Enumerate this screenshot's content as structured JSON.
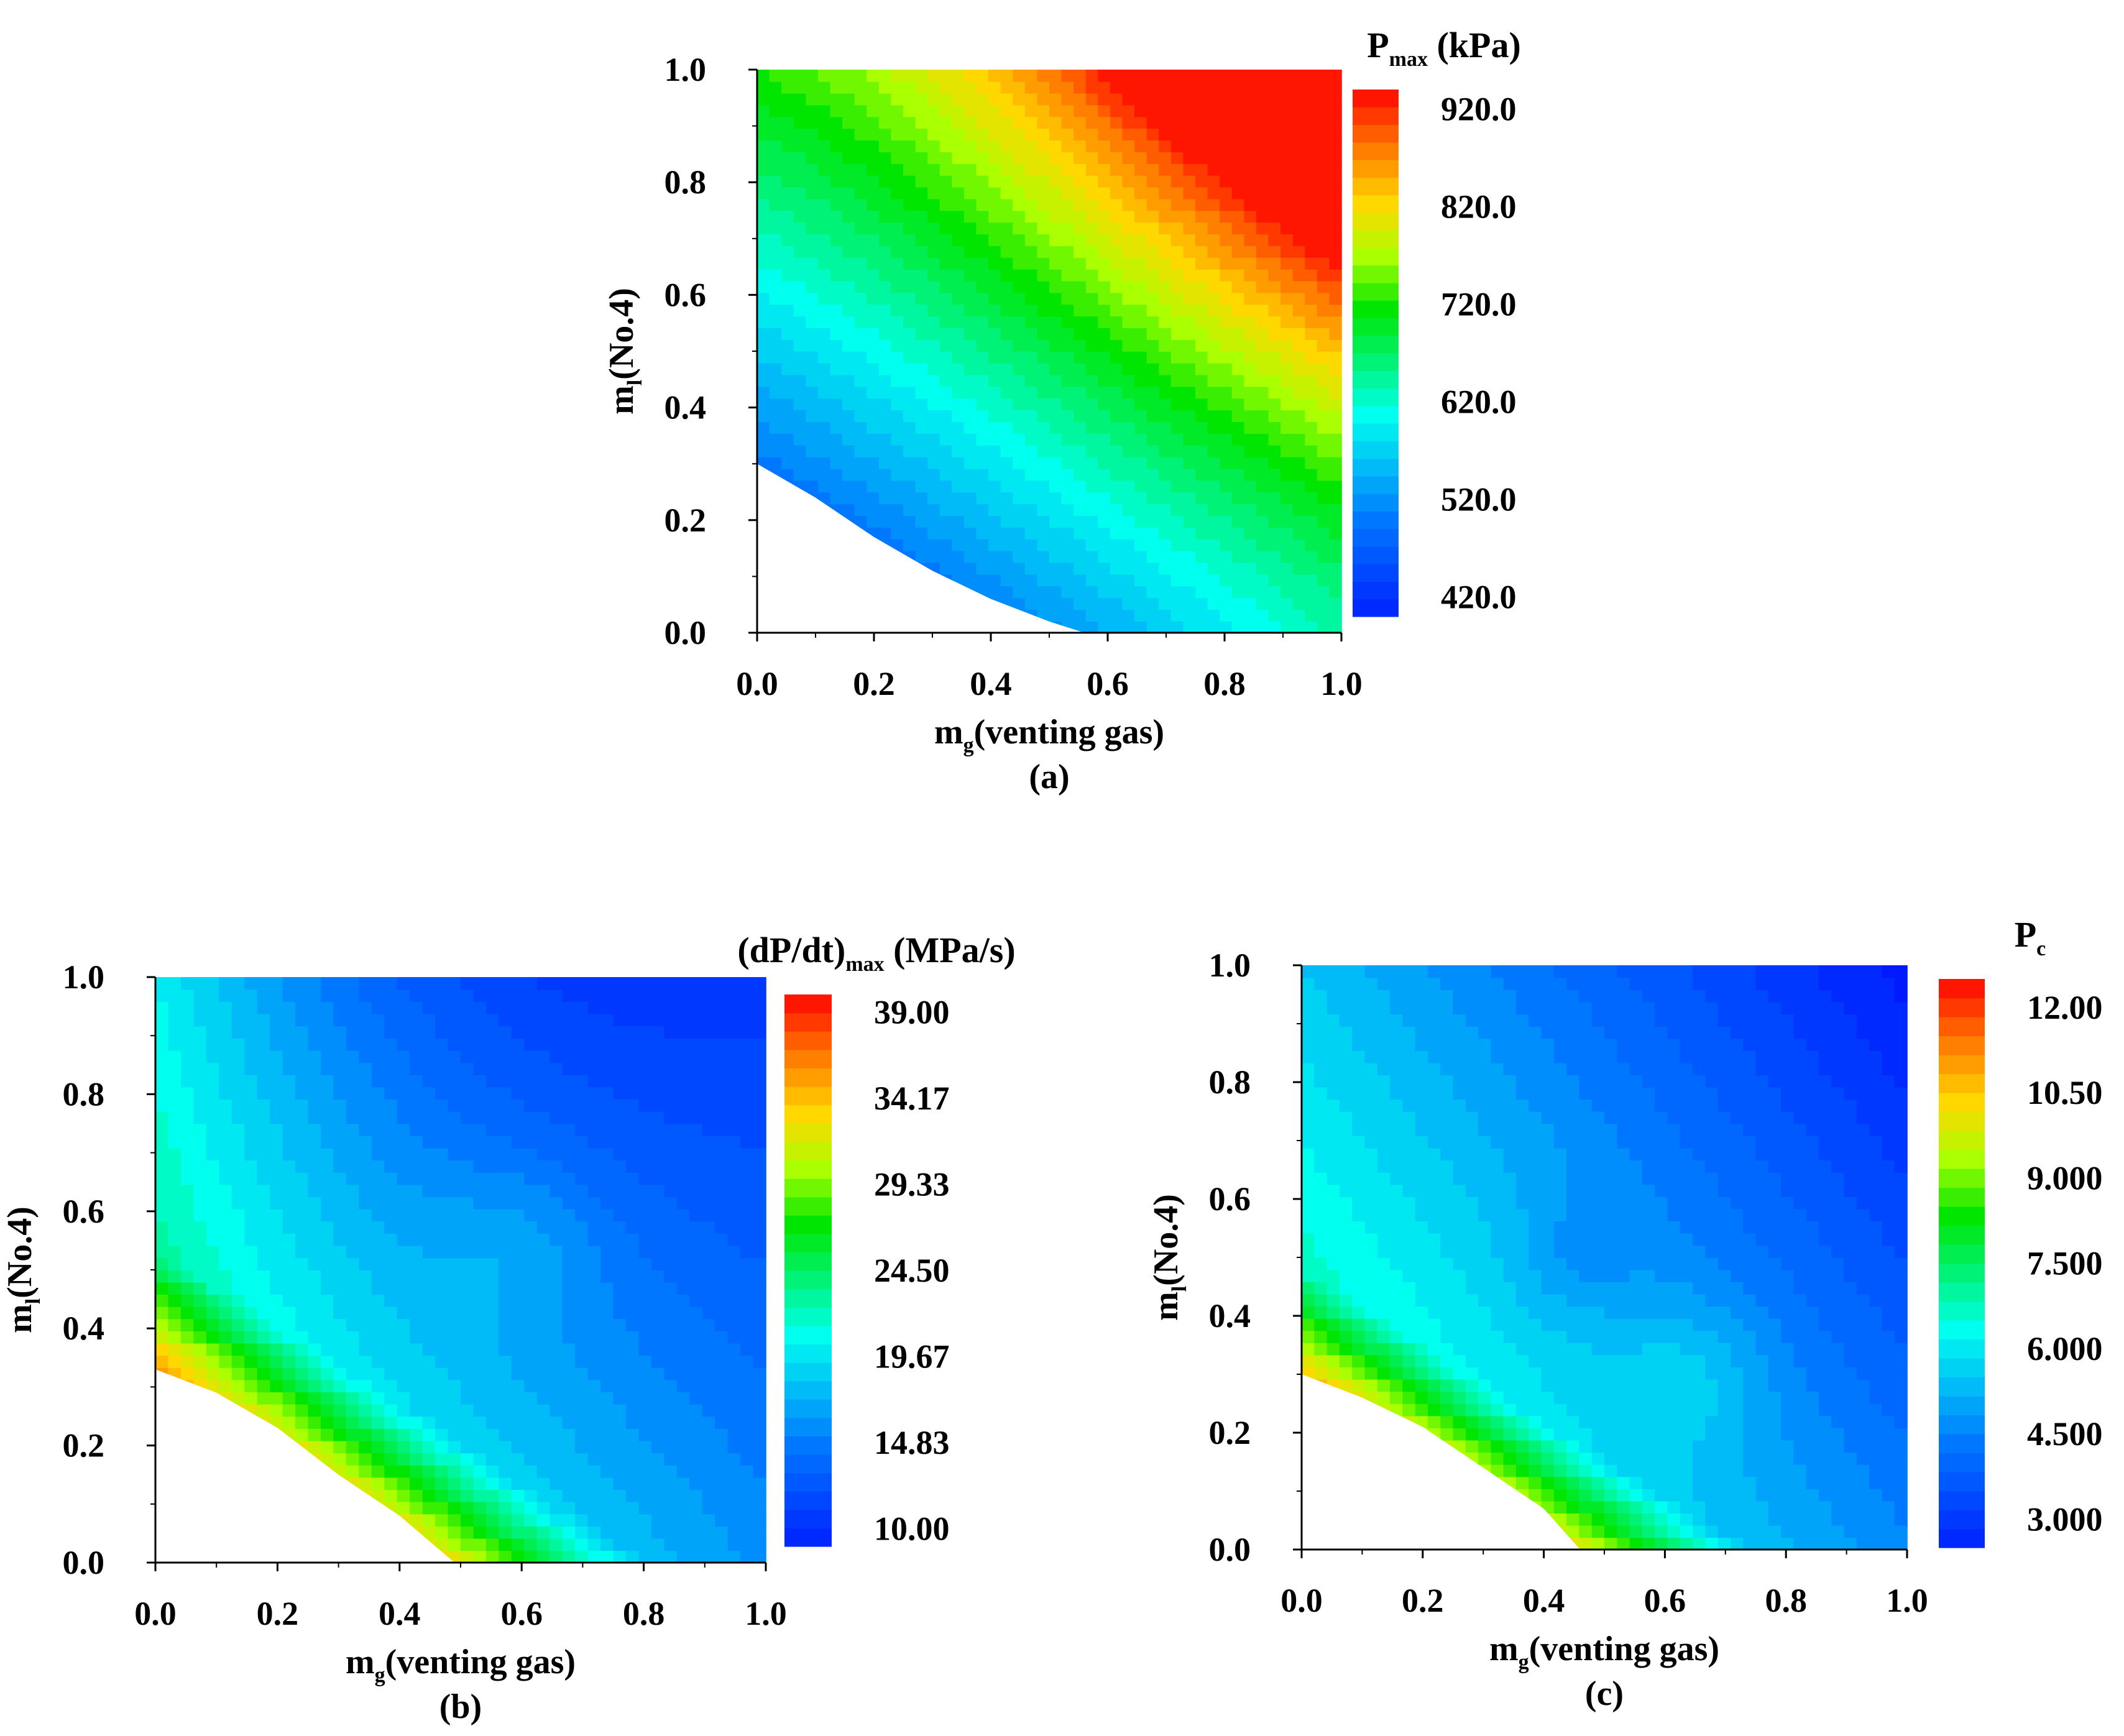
{
  "chart_data": [
    {
      "type": "heatmap",
      "id": "a",
      "panel_label": "(a)",
      "xlabel_main": "m",
      "xlabel_sub": "g",
      "xlabel_rest": "(venting gas)",
      "ylabel_main": "m",
      "ylabel_sub": "l",
      "ylabel_rest": "(No.4)",
      "colorbar_title_main": "P",
      "colorbar_title_sub": "max",
      "colorbar_title_rest": " (kPa)",
      "xlim": [
        0.0,
        1.0
      ],
      "ylim": [
        0.0,
        1.0
      ],
      "x_ticks": [
        "0.0",
        "0.2",
        "0.4",
        "0.6",
        "0.8",
        "1.0"
      ],
      "y_ticks": [
        "0.0",
        "0.2",
        "0.4",
        "0.6",
        "0.8",
        "1.0"
      ],
      "colorbar_range": [
        400.0,
        940.0
      ],
      "colorbar_ticks": [
        {
          "value": 420.0,
          "label": "420.0"
        },
        {
          "value": 520.0,
          "label": "520.0"
        },
        {
          "value": 620.0,
          "label": "620.0"
        },
        {
          "value": 720.0,
          "label": "720.0"
        },
        {
          "value": 820.0,
          "label": "820.0"
        },
        {
          "value": 920.0,
          "label": "920.0"
        }
      ],
      "blank_region_boundary": {
        "x": [
          0.0,
          0.1,
          0.2,
          0.3,
          0.4,
          0.5,
          0.56
        ],
        "y": [
          0.3,
          0.24,
          0.17,
          0.11,
          0.06,
          0.02,
          0.0
        ]
      }
    },
    {
      "type": "heatmap",
      "id": "b",
      "panel_label": "(b)",
      "xlabel_main": "m",
      "xlabel_sub": "g",
      "xlabel_rest": "(venting gas)",
      "ylabel_main": "m",
      "ylabel_sub": "l",
      "ylabel_rest": "(No.4)",
      "colorbar_title_main": "(dP/dt)",
      "colorbar_title_sub": "max",
      "colorbar_title_rest": " (MPa/s)",
      "xlim": [
        0.0,
        1.0
      ],
      "ylim": [
        0.0,
        1.0
      ],
      "x_ticks": [
        "0.0",
        "0.2",
        "0.4",
        "0.6",
        "0.8",
        "1.0"
      ],
      "y_ticks": [
        "0.0",
        "0.2",
        "0.4",
        "0.6",
        "0.8",
        "1.0"
      ],
      "colorbar_range": [
        9.0,
        40.0
      ],
      "colorbar_ticks": [
        {
          "value": 10.0,
          "label": "10.00"
        },
        {
          "value": 14.83,
          "label": "14.83"
        },
        {
          "value": 19.67,
          "label": "19.67"
        },
        {
          "value": 24.5,
          "label": "24.50"
        },
        {
          "value": 29.33,
          "label": "29.33"
        },
        {
          "value": 34.17,
          "label": "34.17"
        },
        {
          "value": 39.0,
          "label": "39.00"
        }
      ],
      "blank_region_boundary": {
        "x": [
          0.0,
          0.1,
          0.2,
          0.3,
          0.4,
          0.49
        ],
        "y": [
          0.33,
          0.29,
          0.23,
          0.15,
          0.08,
          0.0
        ]
      }
    },
    {
      "type": "heatmap",
      "id": "c",
      "panel_label": "(c)",
      "xlabel_main": "m",
      "xlabel_sub": "g",
      "xlabel_rest": "(venting gas)",
      "ylabel_main": "m",
      "ylabel_sub": "l",
      "ylabel_rest": "(No.4)",
      "colorbar_title_main": "P",
      "colorbar_title_sub": "c",
      "colorbar_title_rest": "",
      "xlim": [
        0.0,
        1.0
      ],
      "ylim": [
        0.0,
        1.0
      ],
      "x_ticks": [
        "0.0",
        "0.2",
        "0.4",
        "0.6",
        "0.8",
        "1.0"
      ],
      "y_ticks": [
        "0.0",
        "0.2",
        "0.4",
        "0.6",
        "0.8",
        "1.0"
      ],
      "colorbar_range": [
        2.5,
        12.5
      ],
      "colorbar_ticks": [
        {
          "value": 3.0,
          "label": "3.000"
        },
        {
          "value": 4.5,
          "label": "4.500"
        },
        {
          "value": 6.0,
          "label": "6.000"
        },
        {
          "value": 7.5,
          "label": "7.500"
        },
        {
          "value": 9.0,
          "label": "9.000"
        },
        {
          "value": 10.5,
          "label": "10.50"
        },
        {
          "value": 12.0,
          "label": "12.00"
        }
      ],
      "blank_region_boundary": {
        "x": [
          0.0,
          0.1,
          0.2,
          0.3,
          0.4,
          0.46
        ],
        "y": [
          0.3,
          0.26,
          0.21,
          0.14,
          0.07,
          0.0
        ]
      }
    }
  ]
}
